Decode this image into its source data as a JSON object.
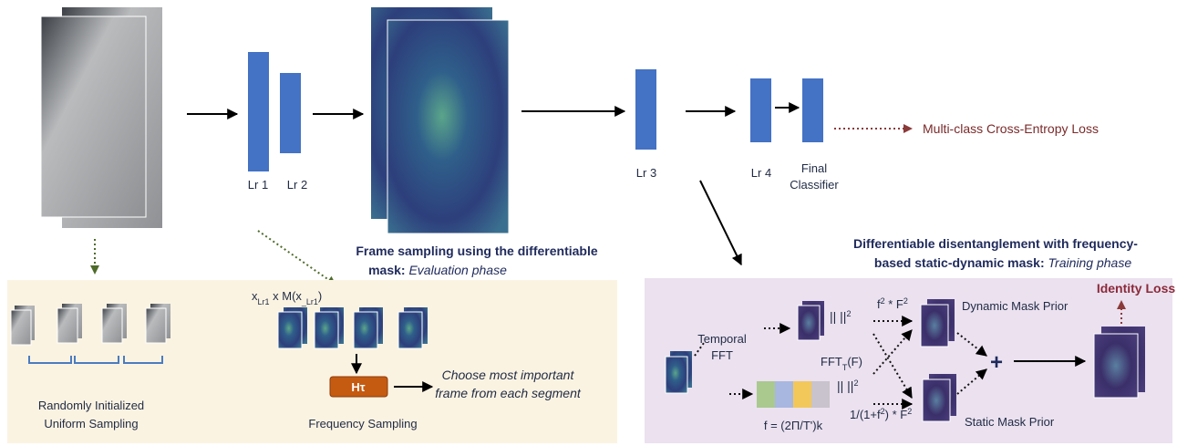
{
  "labels": {
    "lr1": "Lr 1",
    "lr2": "Lr 2",
    "lr3": "Lr 3",
    "lr4": "Lr 4",
    "final": [
      "Final",
      "Classifier"
    ]
  },
  "loss": "Multi-class Cross-Entropy Loss",
  "eval_title": {
    "line1": "Frame sampling using the differentiable",
    "line2_bold": "mask: ",
    "line2_italic": "Evaluation phase"
  },
  "train_title": {
    "line1": "Differentiable disentanglement with frequency-",
    "line2_bold": "based static-dynamic mask: ",
    "line2_italic": "Training phase"
  },
  "eval_panel": {
    "uniform": [
      "Randomly Initialized",
      "Uniform Sampling"
    ],
    "mask_formula": [
      "x",
      "Lr1",
      " x M(x",
      "_Lr1",
      ")"
    ],
    "h_tau": "Hτ",
    "choose": [
      "Choose most important",
      "frame from each segment"
    ],
    "frequency": "Frequency Sampling"
  },
  "train_panel": {
    "temporal_fft": [
      "Temporal",
      "FFT"
    ],
    "norm_top": [
      "|| ||",
      "2"
    ],
    "norm_bottom": [
      "|| ||",
      "2"
    ],
    "dynamic_formula": [
      "f",
      "2",
      " * F",
      "2"
    ],
    "fft_t": [
      "FFT",
      "T",
      "(F)"
    ],
    "freq_formula": "f = (2Π/T')k",
    "static_formula": [
      "1/(1+f",
      "2",
      ") * F",
      "2"
    ],
    "dynamic_prior": "Dynamic Mask Prior",
    "static_prior": "Static Mask Prior",
    "plus": "+",
    "identity_loss": "Identity Loss"
  }
}
